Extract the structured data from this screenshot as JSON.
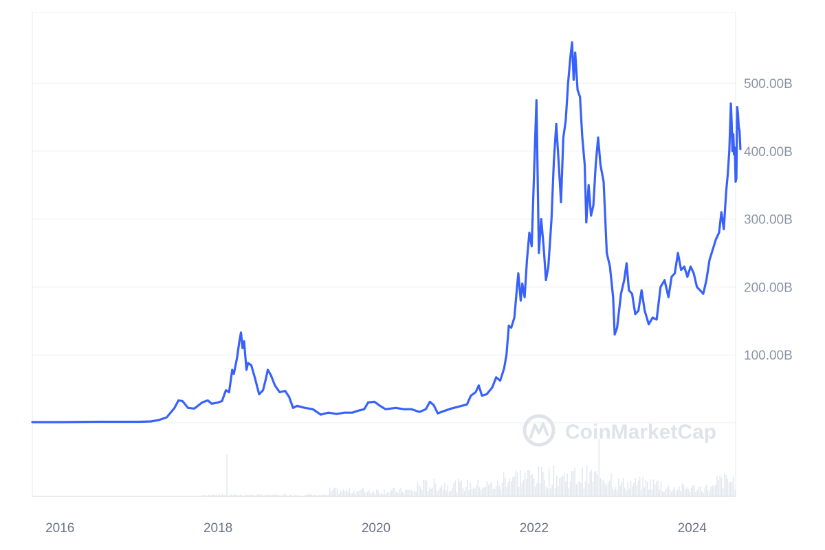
{
  "chart_data": {
    "type": "line",
    "title": "",
    "xlabel": "",
    "ylabel": "",
    "xlim": [
      2015.65,
      2024.55
    ],
    "ylim": [
      0,
      600
    ],
    "x_ticks": [
      {
        "value": 2016,
        "label": "2016"
      },
      {
        "value": 2018,
        "label": "2018"
      },
      {
        "value": 2020,
        "label": "2020"
      },
      {
        "value": 2022,
        "label": "2022"
      },
      {
        "value": 2024,
        "label": "2024"
      }
    ],
    "y_ticks": [
      {
        "value": 100,
        "label": "100.00B"
      },
      {
        "value": 200,
        "label": "200.00B"
      },
      {
        "value": 300,
        "label": "300.00B"
      },
      {
        "value": 400,
        "label": "400.00B"
      },
      {
        "value": 500,
        "label": "500.00B"
      }
    ],
    "grid": true,
    "legend": "none",
    "line_color": "#3861fb",
    "volume_color": "#e3e8ef",
    "series": [
      {
        "points": [
          [
            2015.65,
            1.0
          ],
          [
            2016.0,
            1.0
          ],
          [
            2016.5,
            1.5
          ],
          [
            2017.0,
            1.5
          ],
          [
            2017.15,
            2.0
          ],
          [
            2017.25,
            4.0
          ],
          [
            2017.35,
            8.0
          ],
          [
            2017.45,
            22.0
          ],
          [
            2017.5,
            33.0
          ],
          [
            2017.55,
            32.0
          ],
          [
            2017.62,
            22.0
          ],
          [
            2017.7,
            21.0
          ],
          [
            2017.8,
            30.0
          ],
          [
            2017.87,
            33.0
          ],
          [
            2017.92,
            28.0
          ],
          [
            2018.0,
            30.0
          ],
          [
            2018.05,
            32.0
          ],
          [
            2018.1,
            48.0
          ],
          [
            2018.14,
            45.0
          ],
          [
            2018.18,
            78.0
          ],
          [
            2018.2,
            72.0
          ],
          [
            2018.24,
            95.0
          ],
          [
            2018.27,
            120.0
          ],
          [
            2018.29,
            133.0
          ],
          [
            2018.31,
            110.0
          ],
          [
            2018.33,
            120.0
          ],
          [
            2018.36,
            78.0
          ],
          [
            2018.38,
            88.0
          ],
          [
            2018.42,
            85.0
          ],
          [
            2018.47,
            65.0
          ],
          [
            2018.52,
            42.0
          ],
          [
            2018.57,
            48.0
          ],
          [
            2018.6,
            62.0
          ],
          [
            2018.63,
            78.0
          ],
          [
            2018.67,
            70.0
          ],
          [
            2018.72,
            55.0
          ],
          [
            2018.78,
            45.0
          ],
          [
            2018.85,
            47.0
          ],
          [
            2018.9,
            38.0
          ],
          [
            2018.95,
            22.0
          ],
          [
            2019.0,
            25.0
          ],
          [
            2019.1,
            22.0
          ],
          [
            2019.2,
            20.0
          ],
          [
            2019.3,
            12.0
          ],
          [
            2019.4,
            15.0
          ],
          [
            2019.5,
            13.0
          ],
          [
            2019.6,
            15.0
          ],
          [
            2019.7,
            15.0
          ],
          [
            2019.78,
            18.0
          ],
          [
            2019.85,
            20.0
          ],
          [
            2019.9,
            30.0
          ],
          [
            2019.98,
            31.0
          ],
          [
            2020.05,
            25.0
          ],
          [
            2020.12,
            20.0
          ],
          [
            2020.25,
            22.0
          ],
          [
            2020.35,
            20.0
          ],
          [
            2020.45,
            20.0
          ],
          [
            2020.55,
            16.0
          ],
          [
            2020.63,
            20.0
          ],
          [
            2020.68,
            31.0
          ],
          [
            2020.73,
            26.0
          ],
          [
            2020.78,
            14.0
          ],
          [
            2020.85,
            17.0
          ],
          [
            2020.95,
            21.0
          ],
          [
            2021.05,
            24.0
          ],
          [
            2021.15,
            27.0
          ],
          [
            2021.2,
            40.0
          ],
          [
            2021.26,
            45.0
          ],
          [
            2021.3,
            55.0
          ],
          [
            2021.34,
            40.0
          ],
          [
            2021.4,
            42.0
          ],
          [
            2021.47,
            52.0
          ],
          [
            2021.52,
            67.0
          ],
          [
            2021.57,
            62.0
          ],
          [
            2021.62,
            80.0
          ],
          [
            2021.65,
            100.0
          ],
          [
            2021.68,
            143.0
          ],
          [
            2021.71,
            140.0
          ],
          [
            2021.75,
            155.0
          ],
          [
            2021.78,
            195.0
          ],
          [
            2021.8,
            220.0
          ],
          [
            2021.83,
            180.0
          ],
          [
            2021.85,
            205.0
          ],
          [
            2021.88,
            185.0
          ],
          [
            2021.91,
            240.0
          ],
          [
            2021.94,
            280.0
          ],
          [
            2021.97,
            260.0
          ],
          [
            2022.0,
            370.0
          ],
          [
            2022.03,
            475.0
          ],
          [
            2022.06,
            250.0
          ],
          [
            2022.09,
            300.0
          ],
          [
            2022.12,
            260.0
          ],
          [
            2022.15,
            210.0
          ],
          [
            2022.18,
            230.0
          ],
          [
            2022.22,
            300.0
          ],
          [
            2022.25,
            385.0
          ],
          [
            2022.28,
            440.0
          ],
          [
            2022.31,
            385.0
          ],
          [
            2022.34,
            325.0
          ],
          [
            2022.37,
            420.0
          ],
          [
            2022.4,
            445.0
          ],
          [
            2022.43,
            500.0
          ],
          [
            2022.46,
            540.0
          ],
          [
            2022.48,
            560.0
          ],
          [
            2022.5,
            505.0
          ],
          [
            2022.52,
            545.0
          ],
          [
            2022.55,
            490.0
          ],
          [
            2022.58,
            480.0
          ],
          [
            2022.61,
            420.0
          ],
          [
            2022.64,
            380.0
          ],
          [
            2022.66,
            295.0
          ],
          [
            2022.69,
            350.0
          ],
          [
            2022.72,
            305.0
          ],
          [
            2022.75,
            320.0
          ],
          [
            2022.78,
            380.0
          ],
          [
            2022.81,
            420.0
          ],
          [
            2022.84,
            380.0
          ],
          [
            2022.88,
            355.0
          ],
          [
            2022.92,
            250.0
          ],
          [
            2022.96,
            230.0
          ],
          [
            2023.0,
            185.0
          ],
          [
            2023.02,
            130.0
          ],
          [
            2023.05,
            140.0
          ],
          [
            2023.1,
            190.0
          ],
          [
            2023.14,
            210.0
          ],
          [
            2023.17,
            235.0
          ],
          [
            2023.2,
            195.0
          ],
          [
            2023.24,
            190.0
          ],
          [
            2023.28,
            160.0
          ],
          [
            2023.32,
            165.0
          ],
          [
            2023.36,
            195.0
          ],
          [
            2023.4,
            165.0
          ],
          [
            2023.45,
            145.0
          ],
          [
            2023.5,
            155.0
          ],
          [
            2023.55,
            152.0
          ],
          [
            2023.6,
            200.0
          ],
          [
            2023.65,
            210.0
          ],
          [
            2023.7,
            185.0
          ],
          [
            2023.74,
            215.0
          ],
          [
            2023.78,
            220.0
          ],
          [
            2023.82,
            250.0
          ],
          [
            2023.86,
            225.0
          ],
          [
            2023.9,
            230.0
          ],
          [
            2023.94,
            215.0
          ],
          [
            2023.98,
            230.0
          ],
          [
            2024.02,
            220.0
          ],
          [
            2024.06,
            200.0
          ],
          [
            2024.1,
            195.0
          ],
          [
            2024.14,
            190.0
          ],
          [
            2024.18,
            210.0
          ],
          [
            2024.22,
            240.0
          ],
          [
            2024.26,
            255.0
          ],
          [
            2024.3,
            270.0
          ],
          [
            2024.34,
            280.0
          ],
          [
            2024.37,
            310.0
          ],
          [
            2024.4,
            285.0
          ],
          [
            2024.43,
            340.0
          ],
          [
            2024.45,
            365.0
          ],
          [
            2024.47,
            400.0
          ],
          [
            2024.49,
            470.0
          ],
          [
            2024.5,
            440.0
          ],
          [
            2024.51,
            400.0
          ],
          [
            2024.52,
            425.0
          ],
          [
            2024.53,
            395.0
          ],
          [
            2024.54,
            405.0
          ],
          [
            2024.55,
            355.0
          ],
          [
            2024.56,
            360.0
          ],
          [
            2024.57,
            465.0
          ],
          [
            2024.58,
            455.0
          ],
          [
            2024.59,
            435.0
          ],
          [
            2024.6,
            430.0
          ],
          [
            2024.61,
            403.0
          ]
        ]
      }
    ],
    "watermark": "CoinMarketCap"
  }
}
